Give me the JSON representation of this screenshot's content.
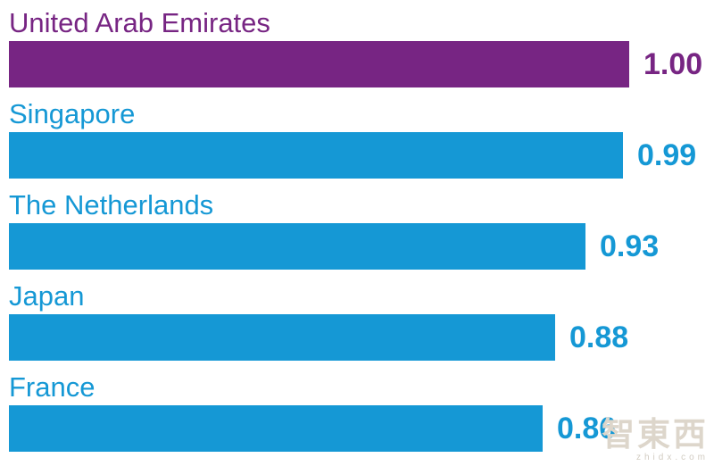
{
  "chart_data": {
    "type": "bar",
    "orientation": "horizontal",
    "title": "",
    "xlabel": "",
    "ylabel": "",
    "xlim": [
      0,
      1.0
    ],
    "grid": false,
    "legend": null,
    "categories": [
      "United Arab Emirates",
      "Singapore",
      "The Netherlands",
      "Japan",
      "France"
    ],
    "values": [
      1.0,
      0.99,
      0.93,
      0.88,
      0.86
    ],
    "value_labels": [
      "1.00",
      "0.99",
      "0.93",
      "0.88",
      "0.86"
    ],
    "bar_colors": [
      "#772583",
      "#1598D5",
      "#1598D5",
      "#1598D5",
      "#1598D5"
    ],
    "text_colors": [
      "#772583",
      "#1598D5",
      "#1598D5",
      "#1598D5",
      "#1598D5"
    ]
  },
  "watermark": {
    "text": "智東西",
    "subtext": "zhidx.com"
  }
}
